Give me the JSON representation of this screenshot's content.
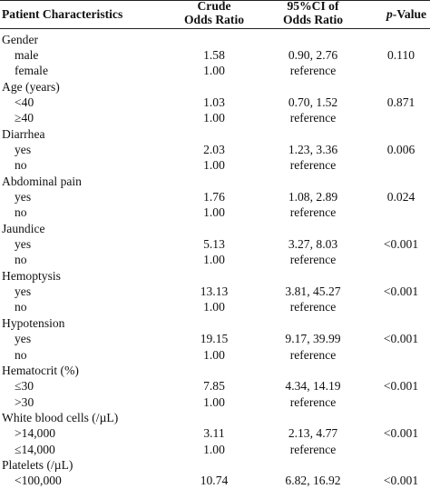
{
  "header": {
    "col1": "Patient Characteristics",
    "col2_line1": "Crude",
    "col2_line2": "Odds Ratio",
    "col3_line1": "95%CI of",
    "col3_line2": "Odds Ratio",
    "col4_p": "p",
    "col4_rest": "-Value"
  },
  "rows": [
    {
      "label": "Gender",
      "sub": false,
      "or": "",
      "ci": "",
      "p": ""
    },
    {
      "label": "male",
      "sub": true,
      "or": "1.58",
      "ci": "0.90, 2.76",
      "p": "0.110"
    },
    {
      "label": "female",
      "sub": true,
      "or": "1.00",
      "ci": "reference",
      "p": ""
    },
    {
      "label": "Age (years)",
      "sub": false,
      "or": "",
      "ci": "",
      "p": ""
    },
    {
      "label": "<40",
      "sub": true,
      "or": "1.03",
      "ci": "0.70, 1.52",
      "p": "0.871"
    },
    {
      "label": "≥40",
      "sub": true,
      "or": "1.00",
      "ci": "reference",
      "p": ""
    },
    {
      "label": "Diarrhea",
      "sub": false,
      "or": "",
      "ci": "",
      "p": ""
    },
    {
      "label": "yes",
      "sub": true,
      "or": "2.03",
      "ci": "1.23, 3.36",
      "p": "0.006"
    },
    {
      "label": "no",
      "sub": true,
      "or": "1.00",
      "ci": "reference",
      "p": ""
    },
    {
      "label": "Abdominal pain",
      "sub": false,
      "or": "",
      "ci": "",
      "p": ""
    },
    {
      "label": "yes",
      "sub": true,
      "or": "1.76",
      "ci": "1.08, 2.89",
      "p": "0.024"
    },
    {
      "label": "no",
      "sub": true,
      "or": "1.00",
      "ci": "reference",
      "p": ""
    },
    {
      "label": "Jaundice",
      "sub": false,
      "or": "",
      "ci": "",
      "p": ""
    },
    {
      "label": "yes",
      "sub": true,
      "or": "5.13",
      "ci": "3.27, 8.03",
      "p": "<0.001"
    },
    {
      "label": "no",
      "sub": true,
      "or": "1.00",
      "ci": "reference",
      "p": ""
    },
    {
      "label": "Hemoptysis",
      "sub": false,
      "or": "",
      "ci": "",
      "p": ""
    },
    {
      "label": "yes",
      "sub": true,
      "or": "13.13",
      "ci": "3.81, 45.27",
      "p": "<0.001"
    },
    {
      "label": "no",
      "sub": true,
      "or": "1.00",
      "ci": "reference",
      "p": ""
    },
    {
      "label": "Hypotension",
      "sub": false,
      "or": "",
      "ci": "",
      "p": ""
    },
    {
      "label": "yes",
      "sub": true,
      "or": "19.15",
      "ci": "9.17, 39.99",
      "p": "<0.001"
    },
    {
      "label": "no",
      "sub": true,
      "or": "1.00",
      "ci": "reference",
      "p": ""
    },
    {
      "label": "Hematocrit (%)",
      "sub": false,
      "or": "",
      "ci": "",
      "p": ""
    },
    {
      "label": "≤30",
      "sub": true,
      "or": "7.85",
      "ci": "4.34, 14.19",
      "p": "<0.001"
    },
    {
      "label": ">30",
      "sub": true,
      "or": "1.00",
      "ci": "reference",
      "p": ""
    },
    {
      "label": "White blood cells (/µL)",
      "sub": false,
      "or": "",
      "ci": "",
      "p": ""
    },
    {
      "label": ">14,000",
      "sub": true,
      "or": "3.11",
      "ci": "2.13, 4.77",
      "p": "<0.001"
    },
    {
      "label": "≤14,000",
      "sub": true,
      "or": "1.00",
      "ci": "reference",
      "p": ""
    },
    {
      "label": "Platelets (/µL)",
      "sub": false,
      "or": "",
      "ci": "",
      "p": ""
    },
    {
      "label": "<100,000",
      "sub": true,
      "or": "10.74",
      "ci": "6.82, 16.92",
      "p": "<0.001"
    }
  ]
}
